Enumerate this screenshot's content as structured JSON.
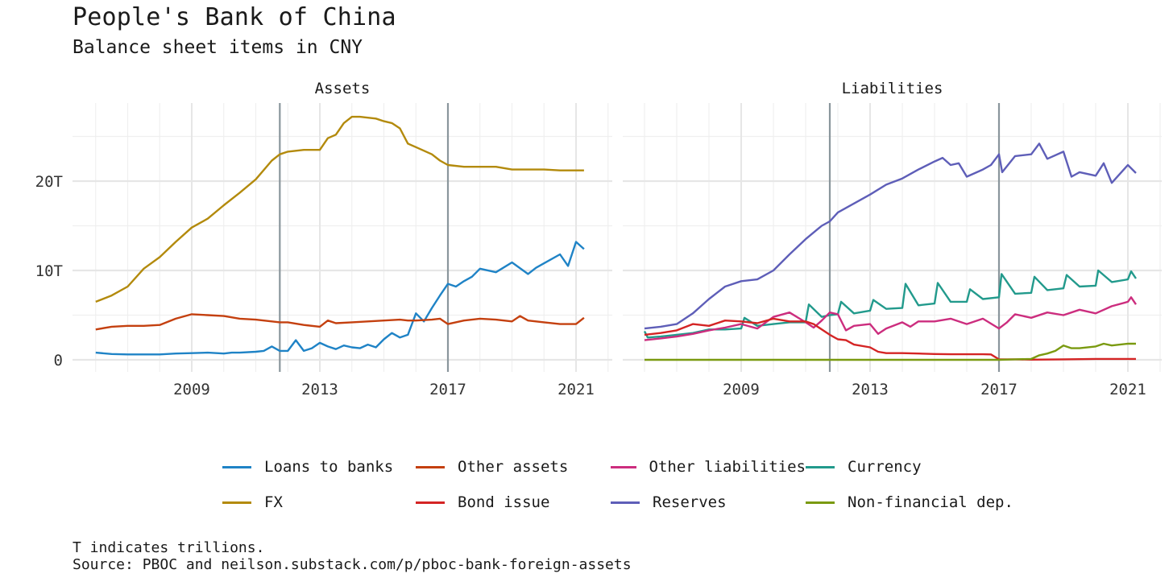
{
  "title": "People's Bank of China",
  "subtitle": "Balance sheet items in CNY",
  "caption": {
    "line1": "T indicates trillions.",
    "line2": "Source: PBOC and neilson.substack.com/p/pboc-bank-foreign-assets"
  },
  "legend": [
    {
      "label": "Loans to banks",
      "color": "#1f83c6"
    },
    {
      "label": "Other assets",
      "color": "#c4400f"
    },
    {
      "label": "Other liabilities",
      "color": "#cc2d7e"
    },
    {
      "label": "Currency",
      "color": "#229a8c"
    },
    {
      "label": "FX",
      "color": "#b38a0c"
    },
    {
      "label": "Bond issue",
      "color": "#d42424"
    },
    {
      "label": "Reserves",
      "color": "#5e5eb8"
    },
    {
      "label": "Non-financial dep.",
      "color": "#7a9a10"
    }
  ],
  "chart_data": {
    "type": "line",
    "title": "People's Bank of China",
    "subtitle": "Balance sheet items in CNY",
    "ylabel": "",
    "xlabel": "",
    "y_tick_labels": [
      "0",
      "10T",
      "20T"
    ],
    "y_ticks": [
      0,
      10,
      20
    ],
    "x_tick_labels": [
      "2009",
      "2013",
      "2017",
      "2021"
    ],
    "x_ticks": [
      2009,
      2013,
      2017,
      2021
    ],
    "xlim": [
      2005.2,
      2021.9
    ],
    "ylim": [
      -1.2,
      28.5
    ],
    "grid": true,
    "legend_position": "bottom",
    "vertical_reference_lines": [
      2011.75,
      2017.0
    ],
    "unit": "trillions CNY",
    "panels": [
      {
        "name": "Assets",
        "series": [
          {
            "name": "FX",
            "color": "#b38a0c",
            "x": [
              2006.0,
              2006.5,
              2007.0,
              2007.5,
              2008.0,
              2008.5,
              2009.0,
              2009.5,
              2010.0,
              2010.5,
              2011.0,
              2011.5,
              2011.75,
              2012.0,
              2012.5,
              2013.0,
              2013.25,
              2013.5,
              2013.75,
              2014.0,
              2014.25,
              2014.5,
              2014.75,
              2015.0,
              2015.25,
              2015.5,
              2015.75,
              2016.0,
              2016.5,
              2016.75,
              2017.0,
              2017.5,
              2018.0,
              2018.5,
              2019.0,
              2019.5,
              2020.0,
              2020.5,
              2021.0,
              2021.25
            ],
            "values": [
              6.5,
              7.2,
              8.2,
              10.2,
              11.5,
              13.2,
              14.8,
              15.8,
              17.3,
              18.7,
              20.2,
              22.3,
              23.0,
              23.3,
              23.5,
              23.5,
              24.8,
              25.2,
              26.5,
              27.2,
              27.2,
              27.1,
              27.0,
              26.7,
              26.5,
              25.9,
              24.2,
              23.8,
              23.0,
              22.3,
              21.8,
              21.6,
              21.6,
              21.6,
              21.3,
              21.3,
              21.3,
              21.2,
              21.2,
              21.2
            ]
          },
          {
            "name": "Loans to banks",
            "color": "#1f83c6",
            "x": [
              2006.0,
              2006.5,
              2007.0,
              2007.5,
              2008.0,
              2008.5,
              2009.0,
              2009.5,
              2010.0,
              2010.25,
              2010.5,
              2011.0,
              2011.25,
              2011.5,
              2011.75,
              2012.0,
              2012.25,
              2012.5,
              2012.75,
              2013.0,
              2013.25,
              2013.5,
              2013.75,
              2014.0,
              2014.25,
              2014.5,
              2014.75,
              2015.0,
              2015.25,
              2015.5,
              2015.75,
              2016.0,
              2016.25,
              2016.5,
              2016.75,
              2017.0,
              2017.25,
              2017.5,
              2017.75,
              2018.0,
              2018.5,
              2019.0,
              2019.5,
              2019.75,
              2020.0,
              2020.5,
              2020.75,
              2021.0,
              2021.25
            ],
            "values": [
              0.8,
              0.65,
              0.6,
              0.6,
              0.6,
              0.7,
              0.75,
              0.8,
              0.7,
              0.8,
              0.8,
              0.9,
              1.0,
              1.5,
              1.0,
              1.0,
              2.2,
              1.0,
              1.3,
              1.9,
              1.5,
              1.2,
              1.6,
              1.4,
              1.3,
              1.7,
              1.4,
              2.3,
              3.0,
              2.5,
              2.8,
              5.2,
              4.3,
              5.8,
              7.2,
              8.5,
              8.2,
              8.8,
              9.3,
              10.2,
              9.8,
              10.9,
              9.6,
              10.3,
              10.8,
              11.8,
              10.5,
              13.2,
              12.4
            ]
          },
          {
            "name": "Other assets",
            "color": "#c4400f",
            "x": [
              2006.0,
              2006.5,
              2007.0,
              2007.5,
              2008.0,
              2008.5,
              2009.0,
              2009.5,
              2010.0,
              2010.5,
              2011.0,
              2011.5,
              2011.75,
              2012.0,
              2012.5,
              2013.0,
              2013.25,
              2013.5,
              2014.0,
              2014.5,
              2015.0,
              2015.5,
              2015.75,
              2016.0,
              2016.5,
              2016.75,
              2017.0,
              2017.5,
              2018.0,
              2018.5,
              2019.0,
              2019.25,
              2019.5,
              2020.0,
              2020.5,
              2021.0,
              2021.25
            ],
            "values": [
              3.4,
              3.7,
              3.8,
              3.8,
              3.9,
              4.6,
              5.1,
              5.0,
              4.9,
              4.6,
              4.5,
              4.3,
              4.2,
              4.2,
              3.9,
              3.7,
              4.4,
              4.1,
              4.2,
              4.3,
              4.4,
              4.5,
              4.4,
              4.4,
              4.5,
              4.6,
              4.0,
              4.4,
              4.6,
              4.5,
              4.3,
              4.9,
              4.4,
              4.2,
              4.0,
              4.0,
              4.7
            ]
          }
        ]
      },
      {
        "name": "Liabilities",
        "series": [
          {
            "name": "Reserves",
            "color": "#5e5eb8",
            "x": [
              2006.0,
              2006.5,
              2007.0,
              2007.5,
              2008.0,
              2008.5,
              2009.0,
              2009.5,
              2010.0,
              2010.5,
              2011.0,
              2011.5,
              2011.75,
              2012.0,
              2012.5,
              2013.0,
              2013.5,
              2014.0,
              2014.5,
              2015.0,
              2015.25,
              2015.5,
              2015.75,
              2016.0,
              2016.5,
              2016.75,
              2017.0,
              2017.1,
              2017.5,
              2018.0,
              2018.25,
              2018.5,
              2019.0,
              2019.25,
              2019.5,
              2020.0,
              2020.25,
              2020.5,
              2021.0,
              2021.25
            ],
            "values": [
              3.5,
              3.7,
              4.0,
              5.2,
              6.8,
              8.2,
              8.8,
              9.0,
              10.0,
              11.8,
              13.5,
              15.0,
              15.5,
              16.5,
              17.5,
              18.5,
              19.6,
              20.3,
              21.3,
              22.2,
              22.6,
              21.8,
              22.0,
              20.5,
              21.3,
              21.8,
              23.0,
              21.0,
              22.8,
              23.0,
              24.2,
              22.5,
              23.3,
              20.5,
              21.0,
              20.6,
              22.0,
              19.8,
              21.8,
              20.9
            ]
          },
          {
            "name": "Currency",
            "color": "#229a8c",
            "x": [
              2006.0,
              2006.1,
              2006.5,
              2007.0,
              2007.5,
              2008.0,
              2008.5,
              2009.0,
              2009.1,
              2009.5,
              2010.0,
              2010.5,
              2011.0,
              2011.1,
              2011.5,
              2011.75,
              2012.0,
              2012.1,
              2012.5,
              2013.0,
              2013.1,
              2013.5,
              2014.0,
              2014.1,
              2014.5,
              2015.0,
              2015.1,
              2015.5,
              2016.0,
              2016.1,
              2016.5,
              2017.0,
              2017.08,
              2017.5,
              2018.0,
              2018.1,
              2018.5,
              2019.0,
              2019.1,
              2019.5,
              2020.0,
              2020.08,
              2020.5,
              2021.0,
              2021.1,
              2021.25
            ],
            "values": [
              3.2,
              2.5,
              2.6,
              2.8,
              3.0,
              3.4,
              3.4,
              3.5,
              4.7,
              3.8,
              4.0,
              4.2,
              4.2,
              6.2,
              4.8,
              5.0,
              5.1,
              6.5,
              5.2,
              5.5,
              6.7,
              5.7,
              5.8,
              8.5,
              6.1,
              6.3,
              8.6,
              6.5,
              6.5,
              7.9,
              6.8,
              7.0,
              9.6,
              7.4,
              7.5,
              9.3,
              7.8,
              8.0,
              9.5,
              8.2,
              8.3,
              10.0,
              8.7,
              9.0,
              9.9,
              9.1
            ]
          },
          {
            "name": "Other liabilities",
            "color": "#cc2d7e",
            "x": [
              2006.0,
              2006.5,
              2007.0,
              2007.5,
              2008.0,
              2008.5,
              2009.0,
              2009.5,
              2010.0,
              2010.5,
              2011.0,
              2011.25,
              2011.5,
              2011.75,
              2012.0,
              2012.25,
              2012.5,
              2013.0,
              2013.25,
              2013.5,
              2014.0,
              2014.25,
              2014.5,
              2015.0,
              2015.5,
              2016.0,
              2016.5,
              2017.0,
              2017.25,
              2017.5,
              2018.0,
              2018.5,
              2019.0,
              2019.5,
              2020.0,
              2020.5,
              2021.0,
              2021.1,
              2021.25
            ],
            "values": [
              2.2,
              2.4,
              2.6,
              2.9,
              3.3,
              3.6,
              4.0,
              3.5,
              4.8,
              5.3,
              4.2,
              3.6,
              4.4,
              5.3,
              5.1,
              3.3,
              3.8,
              4.0,
              2.9,
              3.5,
              4.2,
              3.7,
              4.3,
              4.3,
              4.6,
              4.0,
              4.6,
              3.5,
              4.2,
              5.1,
              4.7,
              5.3,
              5.0,
              5.6,
              5.2,
              6.0,
              6.5,
              7.0,
              6.2
            ]
          },
          {
            "name": "Bond issue",
            "color": "#d42424",
            "x": [
              2006.0,
              2006.5,
              2007.0,
              2007.5,
              2008.0,
              2008.5,
              2009.0,
              2009.5,
              2010.0,
              2010.5,
              2011.0,
              2011.25,
              2011.5,
              2011.75,
              2012.0,
              2012.25,
              2012.5,
              2013.0,
              2013.25,
              2013.5,
              2014.0,
              2014.5,
              2015.0,
              2015.5,
              2016.0,
              2016.5,
              2016.75,
              2017.0,
              2017.5,
              2018.0,
              2019.0,
              2020.0,
              2021.0,
              2021.25
            ],
            "values": [
              2.8,
              3.0,
              3.3,
              4.0,
              3.8,
              4.4,
              4.3,
              4.1,
              4.6,
              4.3,
              4.3,
              4.0,
              3.4,
              2.8,
              2.3,
              2.2,
              1.7,
              1.4,
              0.9,
              0.75,
              0.75,
              0.7,
              0.65,
              0.62,
              0.62,
              0.62,
              0.6,
              0.05,
              0.05,
              0.02,
              0.05,
              0.1,
              0.1,
              0.1
            ]
          },
          {
            "name": "Non-financial dep.",
            "color": "#7a9a10",
            "x": [
              2006.0,
              2008.0,
              2010.0,
              2012.0,
              2014.0,
              2016.0,
              2017.0,
              2017.5,
              2018.0,
              2018.25,
              2018.5,
              2018.75,
              2019.0,
              2019.25,
              2019.5,
              2020.0,
              2020.25,
              2020.5,
              2021.0,
              2021.25
            ],
            "values": [
              0.0,
              0.0,
              0.0,
              0.0,
              0.0,
              0.0,
              0.0,
              0.05,
              0.1,
              0.5,
              0.7,
              1.0,
              1.6,
              1.3,
              1.3,
              1.5,
              1.8,
              1.6,
              1.8,
              1.8
            ]
          }
        ]
      }
    ]
  }
}
